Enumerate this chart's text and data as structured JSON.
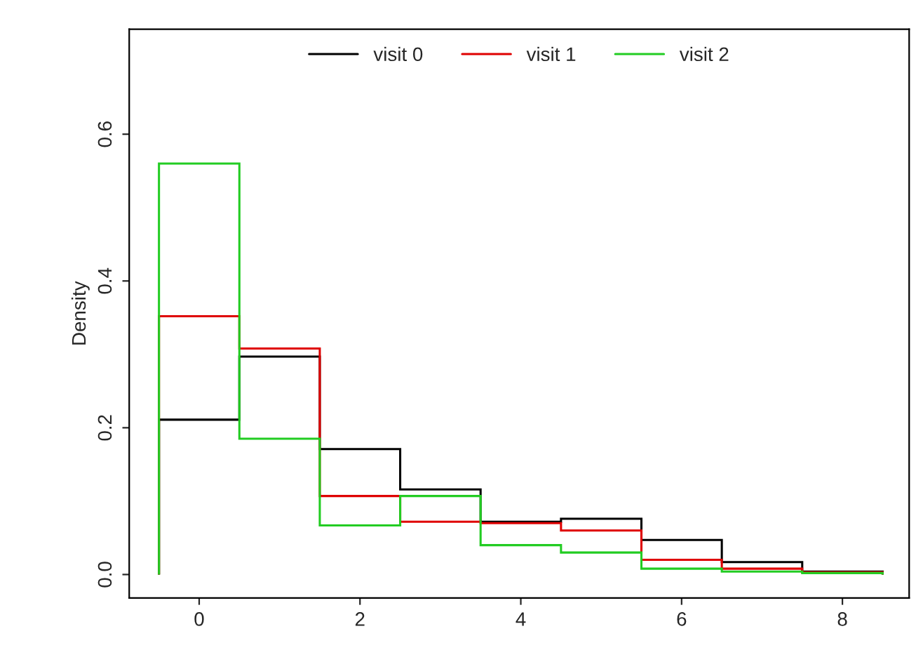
{
  "chart_data": {
    "type": "histogram",
    "ylabel": "Density",
    "bins": [
      -0.5,
      0.5,
      1.5,
      2.5,
      3.5,
      4.5,
      5.5,
      6.5,
      7.5,
      8.5
    ],
    "series": [
      {
        "name": "visit 0",
        "color": "#000000",
        "values": [
          0.211,
          0.297,
          0.171,
          0.116,
          0.072,
          0.076,
          0.047,
          0.017,
          0.004
        ]
      },
      {
        "name": "visit 1",
        "color": "#df0000",
        "values": [
          0.352,
          0.308,
          0.107,
          0.072,
          0.07,
          0.06,
          0.02,
          0.008,
          0.003
        ]
      },
      {
        "name": "visit 2",
        "color": "#22cc22",
        "values": [
          0.56,
          0.185,
          0.067,
          0.107,
          0.04,
          0.03,
          0.008,
          0.004,
          0.002
        ]
      }
    ],
    "xlim": [
      -0.87,
      8.83
    ],
    "ylim": [
      -0.032,
      0.743
    ],
    "xticks": [
      0,
      2,
      4,
      6,
      8
    ],
    "yticks": [
      {
        "value": 0,
        "label": "0.0"
      },
      {
        "value": 0.2,
        "label": "0.2"
      },
      {
        "value": 0.4,
        "label": "0.4"
      },
      {
        "value": 0.6,
        "label": "0.6"
      }
    ],
    "grid": false,
    "legend": "top"
  }
}
